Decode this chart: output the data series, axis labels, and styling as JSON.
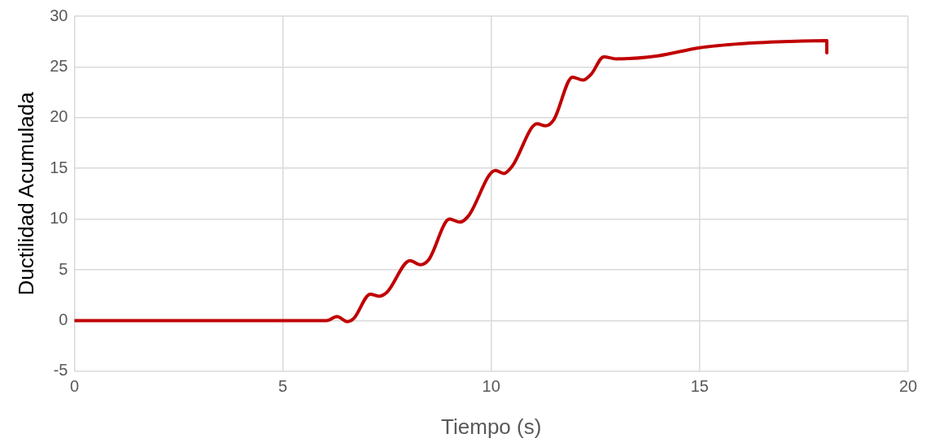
{
  "chart_data": {
    "type": "line",
    "xlabel": "Tiempo (s)",
    "ylabel": "Ductilidad Acumulada",
    "xlim": [
      0,
      20
    ],
    "xticks": [
      0,
      5,
      10,
      15,
      20
    ],
    "ylim": [
      -5,
      30
    ],
    "yticks": [
      -5,
      0,
      5,
      10,
      15,
      20,
      25,
      30
    ],
    "grid": true,
    "marker": "none",
    "line_style": "solid",
    "series": [
      {
        "color": "#c00000",
        "x": [
          0,
          6.05,
          6.3,
          6.55,
          6.7,
          7.1,
          7.3,
          7.5,
          8.05,
          8.3,
          8.5,
          9.0,
          9.25,
          9.45,
          10.1,
          10.3,
          10.5,
          11.1,
          11.3,
          11.5,
          11.95,
          12.2,
          12.4,
          12.7,
          13.0,
          14,
          15,
          16,
          17,
          18.05,
          18.05
        ],
        "values": [
          0,
          0,
          0.4,
          -0.1,
          0.2,
          2.6,
          2.4,
          2.8,
          5.9,
          5.5,
          6,
          10,
          9.7,
          10.3,
          14.8,
          14.5,
          15.2,
          19.4,
          19.2,
          19.8,
          24,
          23.7,
          24.3,
          26,
          25.8,
          26.1,
          26.9,
          27.3,
          27.5,
          27.6,
          26.4
        ]
      }
    ]
  }
}
